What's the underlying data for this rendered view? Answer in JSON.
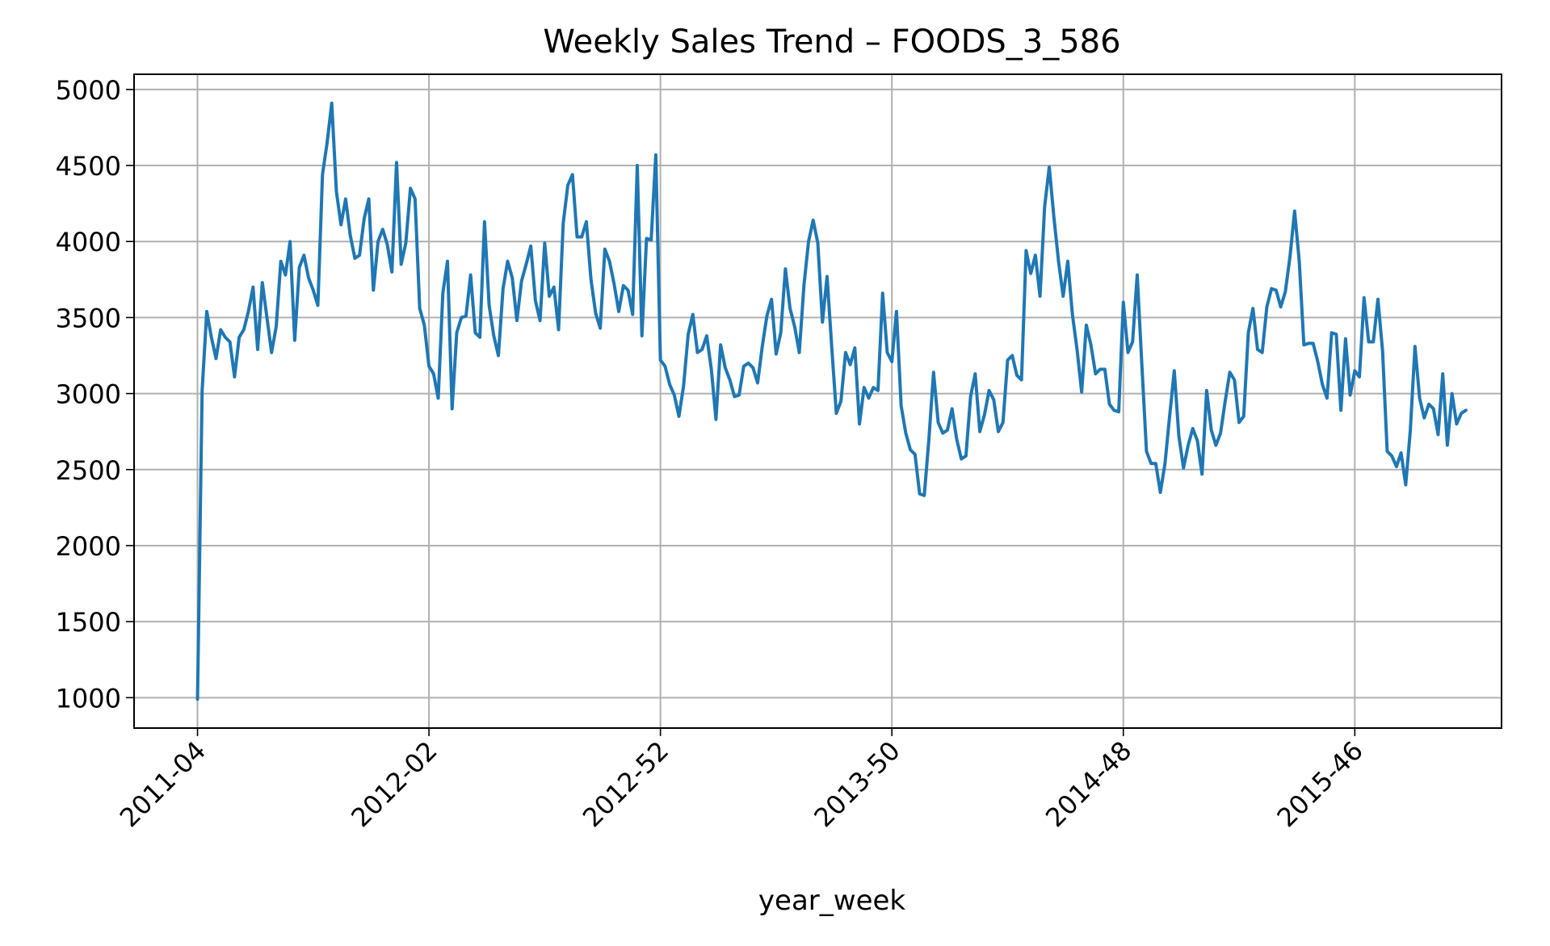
{
  "chart_data": {
    "type": "line",
    "title": "Weekly Sales Trend – FOODS_3_586",
    "xlabel": "year_week",
    "ylabel": "",
    "xtick_labels": [
      "2011-04",
      "2012-02",
      "2012-52",
      "2013-50",
      "2014-48",
      "2015-46"
    ],
    "xtick_positions": [
      0,
      50,
      100,
      150,
      200,
      250
    ],
    "xlim": [
      -13.7,
      281.7
    ],
    "ylim": [
      800,
      5100
    ],
    "yticks": [
      1000,
      1500,
      2000,
      2500,
      3000,
      3500,
      4000,
      4500,
      5000
    ],
    "grid": true,
    "line_color": "#1f77b4",
    "series": [
      {
        "values": [
          990,
          3020,
          3540,
          3370,
          3230,
          3420,
          3370,
          3340,
          3110,
          3370,
          3420,
          3540,
          3700,
          3290,
          3730,
          3500,
          3270,
          3440,
          3870,
          3780,
          4000,
          3350,
          3830,
          3910,
          3760,
          3680,
          3580,
          4440,
          4650,
          4910,
          4330,
          4110,
          4280,
          4040,
          3890,
          3910,
          4150,
          4280,
          3680,
          4000,
          4080,
          3980,
          3800,
          4520,
          3850,
          3990,
          4350,
          4280,
          3560,
          3450,
          3180,
          3130,
          2970,
          3660,
          3870,
          2900,
          3400,
          3500,
          3510,
          3780,
          3400,
          3370,
          4130,
          3580,
          3380,
          3250,
          3690,
          3870,
          3760,
          3480,
          3740,
          3850,
          3970,
          3610,
          3480,
          3990,
          3640,
          3700,
          3420,
          4120,
          4370,
          4440,
          4030,
          4030,
          4130,
          3750,
          3530,
          3430,
          3950,
          3870,
          3720,
          3540,
          3710,
          3680,
          3520,
          4500,
          3380,
          4020,
          4010,
          4570,
          3220,
          3180,
          3060,
          2990,
          2850,
          3050,
          3390,
          3520,
          3270,
          3290,
          3380,
          3160,
          2830,
          3320,
          3170,
          3090,
          2980,
          2990,
          3180,
          3200,
          3170,
          3070,
          3310,
          3510,
          3620,
          3260,
          3400,
          3820,
          3560,
          3440,
          3270,
          3710,
          4000,
          4140,
          3990,
          3470,
          3770,
          3310,
          2870,
          2950,
          3270,
          3190,
          3300,
          2800,
          3040,
          2970,
          3040,
          3020,
          3660,
          3270,
          3210,
          3540,
          2920,
          2740,
          2630,
          2600,
          2340,
          2330,
          2700,
          3140,
          2810,
          2740,
          2760,
          2900,
          2700,
          2570,
          2590,
          2980,
          3130,
          2750,
          2860,
          3020,
          2960,
          2750,
          2810,
          3220,
          3250,
          3120,
          3090,
          3940,
          3790,
          3910,
          3640,
          4230,
          4490,
          4160,
          3870,
          3640,
          3870,
          3520,
          3290,
          3010,
          3450,
          3320,
          3130,
          3160,
          3160,
          2930,
          2890,
          2880,
          3600,
          3270,
          3340,
          3780,
          3190,
          2620,
          2540,
          2540,
          2350,
          2540,
          2850,
          3150,
          2720,
          2510,
          2660,
          2770,
          2690,
          2470,
          3020,
          2760,
          2660,
          2740,
          2950,
          3140,
          3090,
          2810,
          2850,
          3400,
          3560,
          3290,
          3270,
          3570,
          3690,
          3680,
          3570,
          3670,
          3900,
          4200,
          3870,
          3320,
          3330,
          3330,
          3210,
          3060,
          2970,
          3400,
          3390,
          2890,
          3360,
          2990,
          3150,
          3110,
          3630,
          3340,
          3340,
          3620,
          3280,
          2620,
          2590,
          2520,
          2610,
          2400,
          2760,
          3310,
          2970,
          2840,
          2930,
          2900,
          2730,
          3130,
          2660,
          3000,
          2800,
          2870,
          2890
        ]
      }
    ]
  }
}
